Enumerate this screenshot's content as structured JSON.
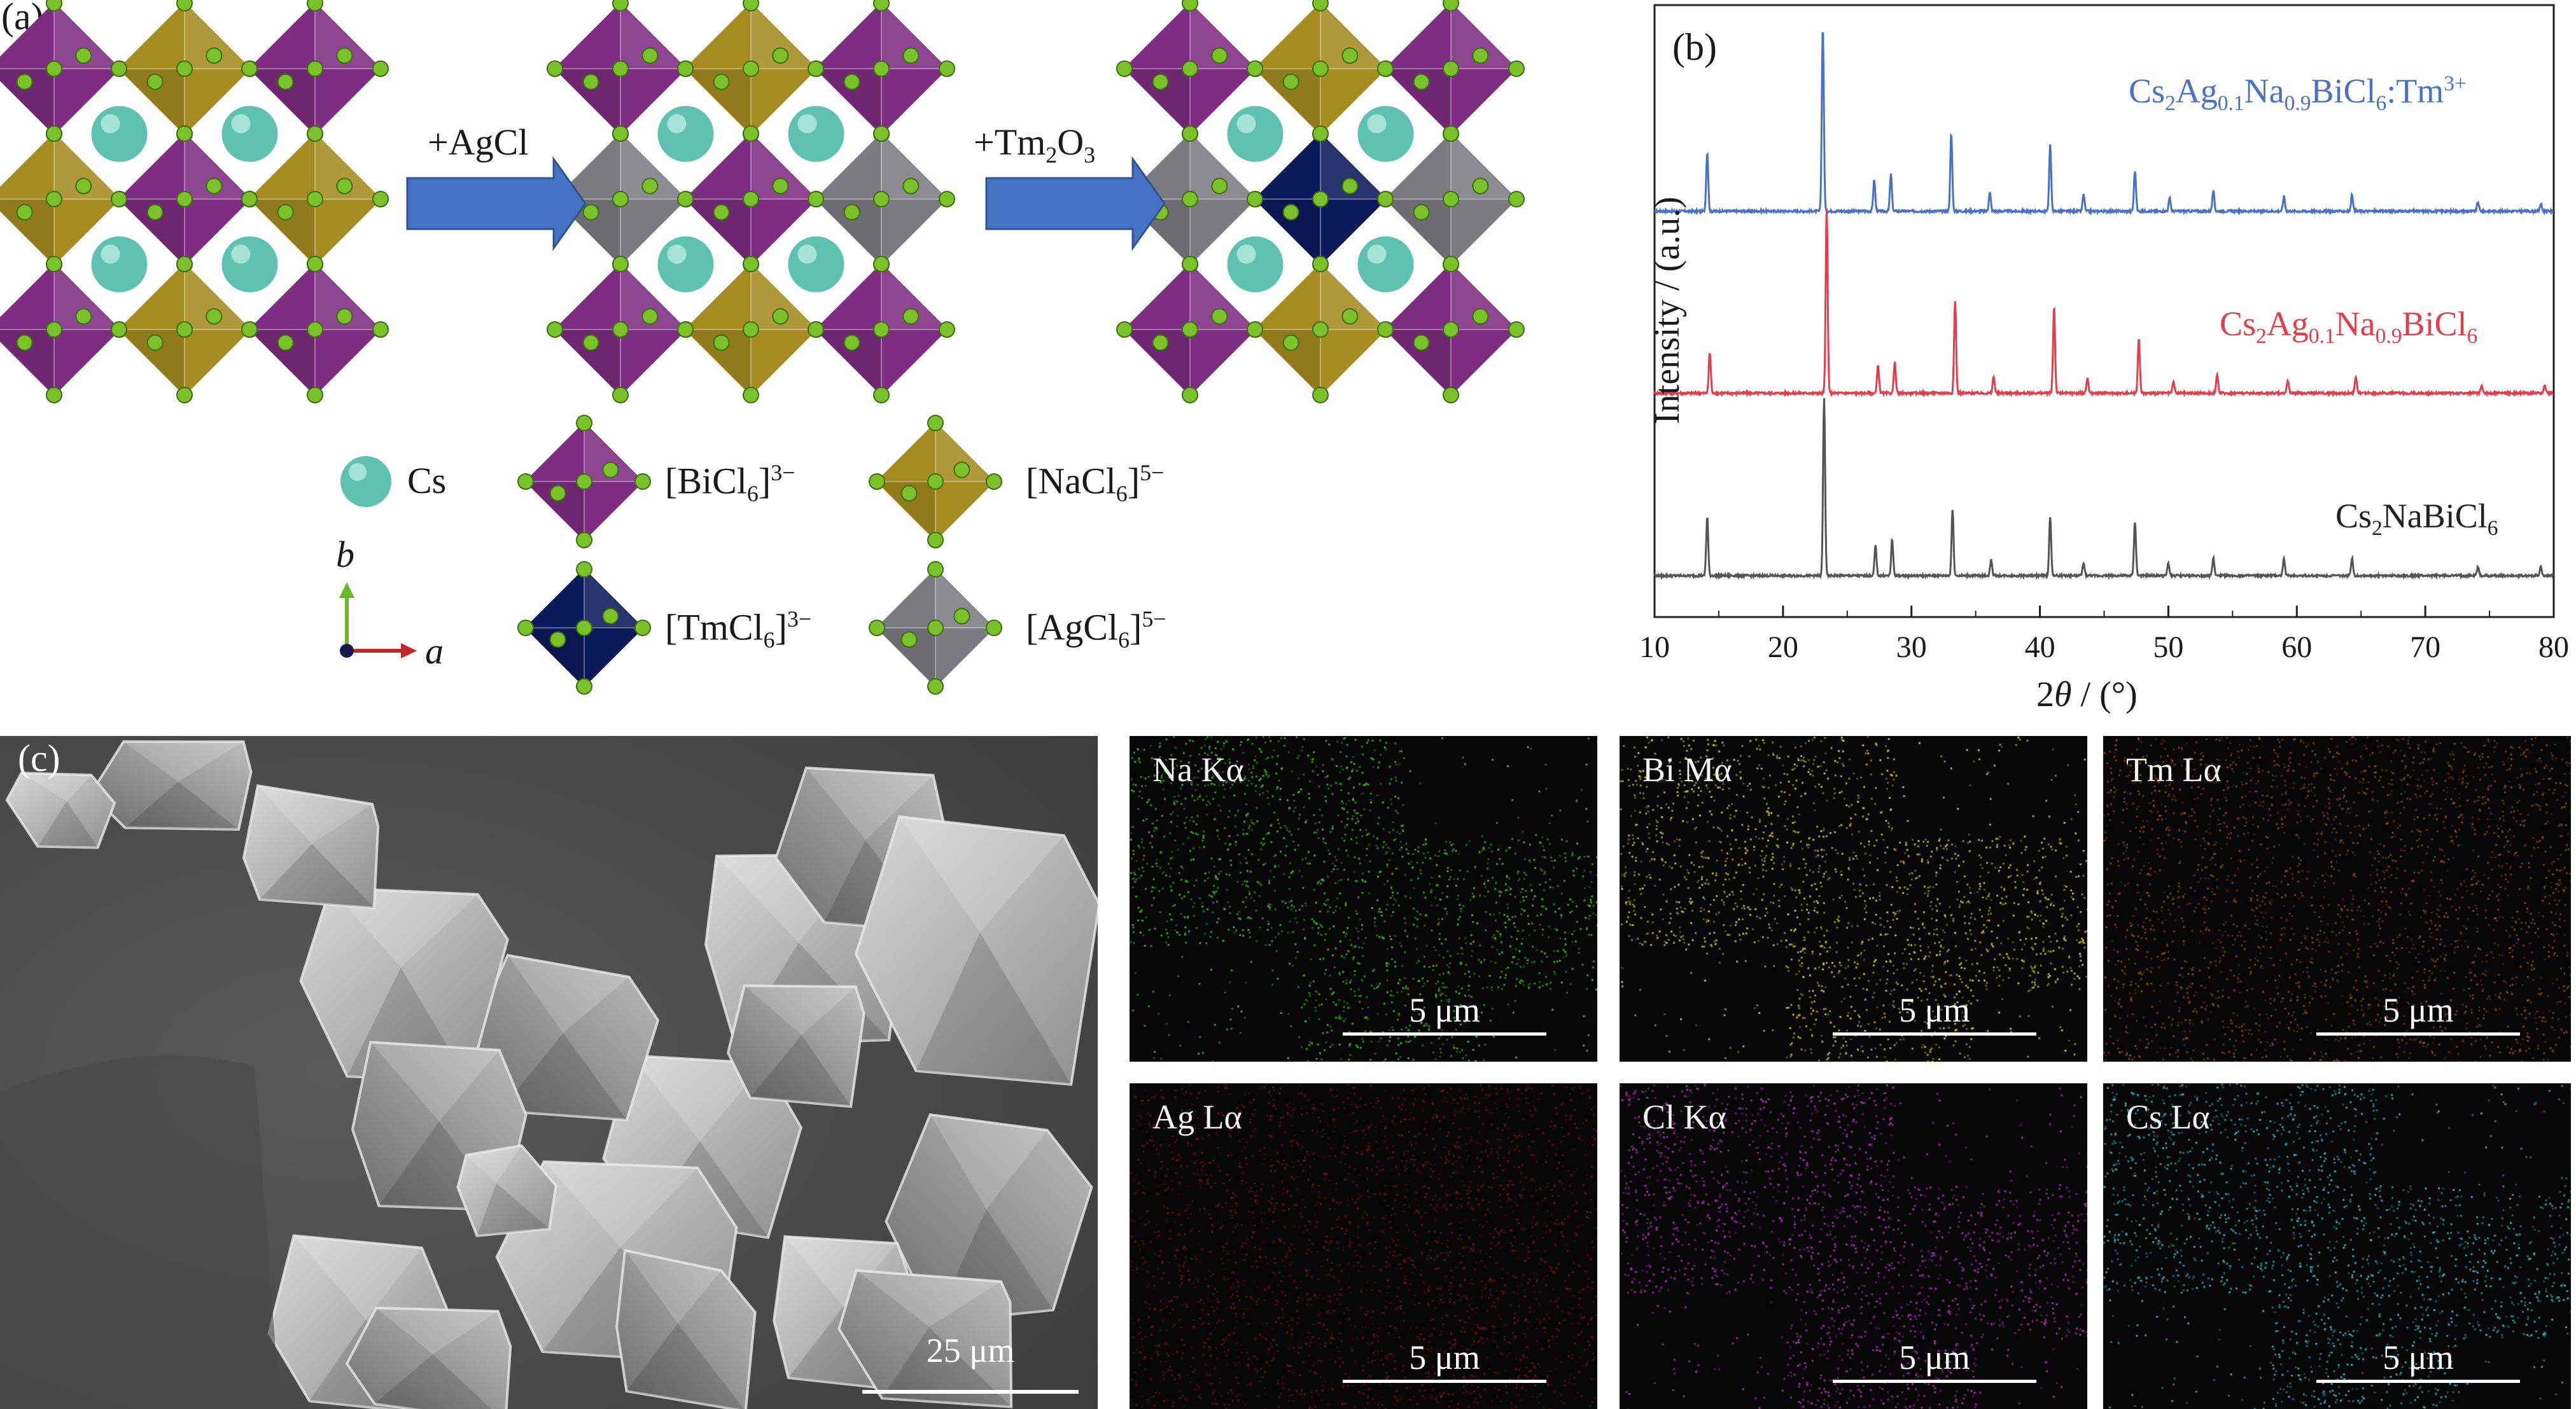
{
  "panel_a": {
    "label": "(a)",
    "step1": "+AgCl",
    "step2_main": "+Tm",
    "step2_sub1": "2",
    "step2_mid": "O",
    "step2_sub2": "3",
    "legend": {
      "cs": "Cs",
      "bicl6": "[BiCl",
      "bicl6_sub": "6",
      "bicl6_sup": "3−",
      "nacl6": "[NaCl",
      "nacl6_sub": "6",
      "nacl6_sup": "5−",
      "tmcl6": "[TmCl",
      "tmcl6_sub": "6",
      "tmcl6_sup": "3−",
      "agcl6": "[AgCl",
      "agcl6_sub": "6",
      "agcl6_sup": "5−",
      "axis_b": "b",
      "axis_a": "a",
      "close": "]"
    },
    "colors": {
      "bi": "#7f2d82",
      "na": "#a58b20",
      "tm": "#0b1a5a",
      "ag": "#7d7b82",
      "cs": "#5fc2b0",
      "cl": "#7ac12a",
      "arrow": "#4472c4"
    }
  },
  "panel_b": {
    "label": "(b)",
    "series_labels": {
      "s1_main": "Cs",
      "s1_a": "2",
      "s1_b": "Ag",
      "s1_c": "0.1",
      "s1_d": "Na",
      "s1_e": "0.9",
      "s1_f": "BiCl",
      "s1_g": "6",
      "s1_h": ":Tm",
      "s1_i": "3+",
      "s2_main": "Cs",
      "s2_a": "2",
      "s2_b": "Ag",
      "s2_c": "0.1",
      "s2_d": "Na",
      "s2_e": "0.9",
      "s2_f": "BiCl",
      "s2_g": "6",
      "s3_main": "Cs",
      "s3_a": "2",
      "s3_b": "NaBiCl",
      "s3_c": "6"
    }
  },
  "chart_data": {
    "type": "line",
    "xlabel_prefix": "2",
    "xlabel_theta": "θ",
    "xlabel_suffix": " / (°)",
    "ylabel": "Intensity / (a.u.)",
    "xlim": [
      10,
      80
    ],
    "xticks": [
      10,
      20,
      30,
      40,
      50,
      60,
      70,
      80
    ],
    "series": [
      {
        "color": "#4a72c4",
        "peaks": [
          [
            14.1,
            0.32
          ],
          [
            23.1,
            1.0
          ],
          [
            27.1,
            0.17
          ],
          [
            28.4,
            0.2
          ],
          [
            33.1,
            0.42
          ],
          [
            36.1,
            0.1
          ],
          [
            40.8,
            0.36
          ],
          [
            43.4,
            0.09
          ],
          [
            47.4,
            0.22
          ],
          [
            50.1,
            0.07
          ],
          [
            53.5,
            0.11
          ],
          [
            59.0,
            0.08
          ],
          [
            64.3,
            0.09
          ],
          [
            74.1,
            0.05
          ],
          [
            79.0,
            0.04
          ]
        ]
      },
      {
        "color": "#e0404d",
        "peaks": [
          [
            14.3,
            0.22
          ],
          [
            23.4,
            1.0
          ],
          [
            27.4,
            0.15
          ],
          [
            28.7,
            0.17
          ],
          [
            33.4,
            0.5
          ],
          [
            36.4,
            0.09
          ],
          [
            41.1,
            0.47
          ],
          [
            43.7,
            0.08
          ],
          [
            47.7,
            0.3
          ],
          [
            50.4,
            0.06
          ],
          [
            53.8,
            0.1
          ],
          [
            59.3,
            0.07
          ],
          [
            64.6,
            0.09
          ],
          [
            74.4,
            0.04
          ],
          [
            79.3,
            0.04
          ]
        ]
      },
      {
        "color": "#555555",
        "peaks": [
          [
            14.1,
            0.33
          ],
          [
            23.2,
            1.0
          ],
          [
            27.2,
            0.17
          ],
          [
            28.5,
            0.2
          ],
          [
            33.2,
            0.37
          ],
          [
            36.2,
            0.09
          ],
          [
            40.8,
            0.33
          ],
          [
            43.4,
            0.07
          ],
          [
            47.4,
            0.3
          ],
          [
            50.0,
            0.07
          ],
          [
            53.5,
            0.1
          ],
          [
            59.0,
            0.1
          ],
          [
            64.3,
            0.1
          ],
          [
            74.1,
            0.05
          ],
          [
            79.0,
            0.05
          ]
        ]
      }
    ]
  },
  "panel_c": {
    "label": "(c)",
    "sem_scale": "25 μm",
    "eds": [
      {
        "label": "Na Kα",
        "scale": "5 μm",
        "color": "#3fb51e"
      },
      {
        "label": "Bi Mα",
        "scale": "5 μm",
        "color": "#c6c12a"
      },
      {
        "label": "Tm Lα",
        "scale": "5 μm",
        "color": "#d7751e"
      },
      {
        "label": "Ag Lα",
        "scale": "5 μm",
        "color": "#b3181c"
      },
      {
        "label": "Cl Kα",
        "scale": "5 μm",
        "color": "#b02bb6"
      },
      {
        "label": "Cs Lα",
        "scale": "5 μm",
        "color": "#2fb3b8"
      }
    ]
  }
}
